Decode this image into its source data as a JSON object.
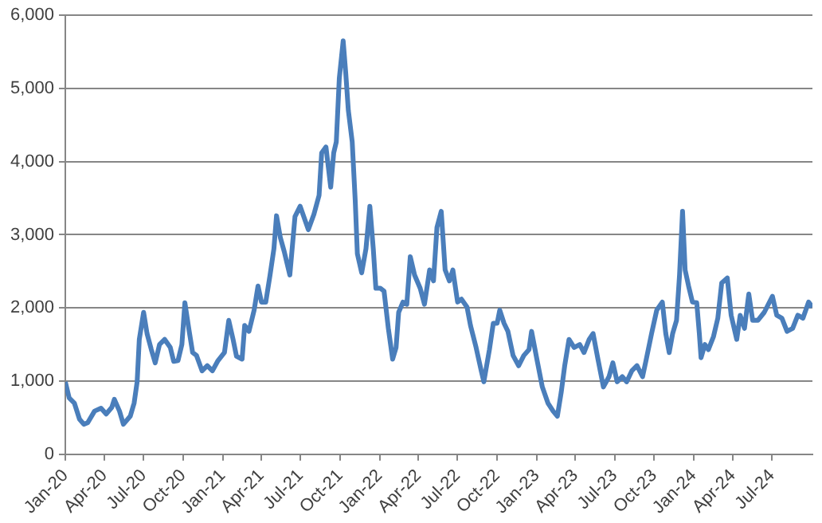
{
  "chart_data": {
    "type": "line",
    "x": [
      "2020-01-01",
      "2020-01-10",
      "2020-01-22",
      "2020-02-03",
      "2020-02-13",
      "2020-02-22",
      "2020-03-09",
      "2020-03-24",
      "2020-04-05",
      "2020-04-18",
      "2020-04-24",
      "2020-05-06",
      "2020-05-15",
      "2020-05-31",
      "2020-06-09",
      "2020-06-16",
      "2020-06-21",
      "2020-07-01",
      "2020-07-09",
      "2020-07-19",
      "2020-07-28",
      "2020-08-07",
      "2020-08-19",
      "2020-09-01",
      "2020-09-09",
      "2020-09-19",
      "2020-09-28",
      "2020-10-05",
      "2020-10-14",
      "2020-10-23",
      "2020-11-01",
      "2020-11-14",
      "2020-11-26",
      "2020-12-08",
      "2020-12-21",
      "2021-01-05",
      "2021-01-15",
      "2021-01-25",
      "2021-02-02",
      "2021-02-15",
      "2021-02-21",
      "2021-03-03",
      "2021-03-15",
      "2021-03-24",
      "2021-04-01",
      "2021-04-11",
      "2021-04-21",
      "2021-04-30",
      "2021-05-06",
      "2021-05-15",
      "2021-05-24",
      "2021-06-06",
      "2021-06-18",
      "2021-06-30",
      "2021-07-19",
      "2021-08-01",
      "2021-08-13",
      "2021-08-19",
      "2021-08-29",
      "2021-09-09",
      "2021-09-16",
      "2021-09-22",
      "2021-09-29",
      "2021-10-08",
      "2021-10-14",
      "2021-10-20",
      "2021-10-29",
      "2021-11-05",
      "2021-11-10",
      "2021-11-20",
      "2021-11-30",
      "2021-12-09",
      "2021-12-17",
      "2021-12-23",
      "2022-01-02",
      "2022-01-11",
      "2022-01-21",
      "2022-01-31",
      "2022-02-08",
      "2022-02-14",
      "2022-02-24",
      "2022-03-05",
      "2022-03-13",
      "2022-03-23",
      "2022-04-05",
      "2022-04-15",
      "2022-04-27",
      "2022-05-06",
      "2022-05-14",
      "2022-05-24",
      "2022-06-02",
      "2022-06-12",
      "2022-06-20",
      "2022-07-01",
      "2022-07-10",
      "2022-07-23",
      "2022-07-31",
      "2022-08-13",
      "2022-08-25",
      "2022-08-31",
      "2022-09-13",
      "2022-09-22",
      "2022-10-01",
      "2022-10-07",
      "2022-10-17",
      "2022-10-26",
      "2022-11-07",
      "2022-11-20",
      "2022-12-02",
      "2022-12-14",
      "2022-12-20",
      "2023-01-02",
      "2023-01-14",
      "2023-01-27",
      "2023-02-08",
      "2023-02-18",
      "2023-02-27",
      "2023-03-07",
      "2023-03-17",
      "2023-03-29",
      "2023-04-11",
      "2023-04-21",
      "2023-05-03",
      "2023-05-12",
      "2023-05-24",
      "2023-06-05",
      "2023-06-18",
      "2023-06-27",
      "2023-07-07",
      "2023-07-19",
      "2023-07-29",
      "2023-08-10",
      "2023-08-22",
      "2023-09-04",
      "2023-09-12",
      "2023-09-25",
      "2023-10-07",
      "2023-10-20",
      "2023-10-28",
      "2023-11-05",
      "2023-11-13",
      "2023-11-22",
      "2023-11-29",
      "2023-12-06",
      "2023-12-12",
      "2023-12-20",
      "2023-12-29",
      "2024-01-08",
      "2024-01-14",
      "2024-01-18",
      "2024-01-27",
      "2024-02-04",
      "2024-02-16",
      "2024-02-26",
      "2024-03-06",
      "2024-03-19",
      "2024-03-28",
      "2024-04-10",
      "2024-04-18",
      "2024-04-28",
      "2024-05-08",
      "2024-05-17",
      "2024-05-29",
      "2024-06-13",
      "2024-07-02",
      "2024-07-12",
      "2024-07-24",
      "2024-08-05",
      "2024-08-18",
      "2024-08-30",
      "2024-09-11",
      "2024-09-24",
      "2024-10-03"
    ],
    "series": [
      {
        "color": "#4a7ebb",
        "values": [
          990,
          770,
          700,
          480,
          410,
          430,
          590,
          630,
          550,
          640,
          750,
          590,
          410,
          520,
          700,
          990,
          1570,
          1940,
          1650,
          1430,
          1250,
          1500,
          1570,
          1460,
          1270,
          1280,
          1500,
          2070,
          1720,
          1390,
          1350,
          1140,
          1210,
          1140,
          1280,
          1390,
          1830,
          1570,
          1340,
          1300,
          1760,
          1680,
          1970,
          2300,
          2080,
          2080,
          2450,
          2810,
          3260,
          2960,
          2770,
          2450,
          3250,
          3390,
          3070,
          3280,
          3540,
          4120,
          4200,
          3650,
          4120,
          4270,
          5140,
          5650,
          5210,
          4700,
          4270,
          3470,
          2740,
          2480,
          2810,
          3390,
          2810,
          2270,
          2270,
          2230,
          1720,
          1300,
          1460,
          1940,
          2080,
          2050,
          2700,
          2450,
          2270,
          2050,
          2520,
          2370,
          3100,
          3320,
          2520,
          2370,
          2520,
          2080,
          2120,
          2010,
          1760,
          1460,
          1140,
          990,
          1430,
          1790,
          1790,
          1970,
          1790,
          1680,
          1350,
          1210,
          1350,
          1430,
          1680,
          1280,
          920,
          700,
          590,
          520,
          850,
          1210,
          1570,
          1460,
          1500,
          1390,
          1570,
          1650,
          1280,
          920,
          1060,
          1250,
          990,
          1060,
          990,
          1140,
          1210,
          1060,
          1280,
          1650,
          1970,
          2080,
          1650,
          1390,
          1650,
          1830,
          2450,
          3320,
          2520,
          2300,
          2080,
          2070,
          1650,
          1320,
          1500,
          1430,
          1610,
          1860,
          2340,
          2410,
          1900,
          1570,
          1900,
          1720,
          2190,
          1830,
          1830,
          1940,
          2160,
          1900,
          1860,
          1680,
          1720,
          1900,
          1860,
          2080,
          2010
        ]
      }
    ],
    "xlim": [
      "2020-01-01",
      "2024-10-03"
    ],
    "xticks": [
      {
        "value": "2020-01-01",
        "label": "Jan-20"
      },
      {
        "value": "2020-04-01",
        "label": "Apr-20"
      },
      {
        "value": "2020-07-01",
        "label": "Jul-20"
      },
      {
        "value": "2020-10-01",
        "label": "Oct-20"
      },
      {
        "value": "2021-01-01",
        "label": "Jan-21"
      },
      {
        "value": "2021-04-01",
        "label": "Apr-21"
      },
      {
        "value": "2021-07-01",
        "label": "Jul-21"
      },
      {
        "value": "2021-10-01",
        "label": "Oct-21"
      },
      {
        "value": "2022-01-01",
        "label": "Jan-22"
      },
      {
        "value": "2022-04-01",
        "label": "Apr-22"
      },
      {
        "value": "2022-07-01",
        "label": "Jul-22"
      },
      {
        "value": "2022-10-01",
        "label": "Oct-22"
      },
      {
        "value": "2023-01-01",
        "label": "Jan-23"
      },
      {
        "value": "2023-04-01",
        "label": "Apr-23"
      },
      {
        "value": "2023-07-01",
        "label": "Jul-23"
      },
      {
        "value": "2023-10-01",
        "label": "Oct-23"
      },
      {
        "value": "2024-01-01",
        "label": "Jan-24"
      },
      {
        "value": "2024-04-01",
        "label": "Apr-24"
      },
      {
        "value": "2024-07-01",
        "label": "Jul-24"
      }
    ],
    "ylim": [
      0,
      6000
    ],
    "yticks": [
      0,
      {
        "value": 1000,
        "label": "1,000"
      },
      {
        "value": 2000,
        "label": "2,000"
      },
      {
        "value": 3000,
        "label": "3,000"
      },
      {
        "value": 4000,
        "label": "4,000"
      },
      {
        "value": 5000,
        "label": "5,000"
      },
      {
        "value": 6000,
        "label": "6,000"
      }
    ],
    "grid": "y",
    "legend": false,
    "marker": "none",
    "line_style": "solid"
  }
}
